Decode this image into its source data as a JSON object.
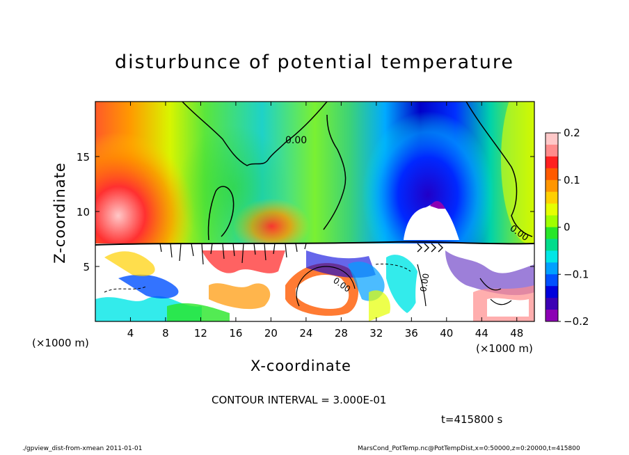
{
  "chart_data": {
    "type": "heatmap",
    "title": "disturbunce of potential temperature",
    "xlabel": "X-coordinate",
    "ylabel": "Z-coordinate",
    "x_unit_left": "(×1000 m)",
    "x_unit_right": "(×1000 m)",
    "x_ticks": [
      "4",
      "8",
      "12",
      "16",
      "20",
      "24",
      "28",
      "32",
      "36",
      "40",
      "44",
      "48"
    ],
    "x_tick_values": [
      4,
      8,
      12,
      16,
      20,
      24,
      28,
      32,
      36,
      40,
      44,
      48
    ],
    "y_ticks": [
      "5",
      "10",
      "15"
    ],
    "y_tick_values": [
      5,
      10,
      15
    ],
    "xlim": [
      0,
      50
    ],
    "ylim": [
      0,
      20
    ],
    "colorbar": {
      "ticks": [
        "0.2",
        "0.1",
        "0",
        "−0.1",
        "−0.2"
      ],
      "tick_values": [
        0.2,
        0.1,
        0,
        -0.1,
        -0.2
      ],
      "range": [
        -0.2,
        0.2
      ],
      "colors": [
        "#ffc8c8",
        "#ff8c8c",
        "#ff2020",
        "#ff5a00",
        "#ff9600",
        "#ffd000",
        "#e6ff00",
        "#a0ff00",
        "#28e628",
        "#00dc8c",
        "#00e6e6",
        "#00a0ff",
        "#0050ff",
        "#0000dc",
        "#3c00b4",
        "#8c00b4"
      ]
    },
    "contour_labels": [
      "0.00",
      "0.00",
      "0.00",
      "0.00"
    ],
    "contour_interval": "CONTOUR INTERVAL = 3.000E-01"
  },
  "time_label": "t=415800 s",
  "footer_left": "./gpview_dist-from-xmean  2011-01-01",
  "footer_right": "MarsCond_PotTemp.nc@PotTempDist,x=0:50000,z=0:20000,t=415800"
}
